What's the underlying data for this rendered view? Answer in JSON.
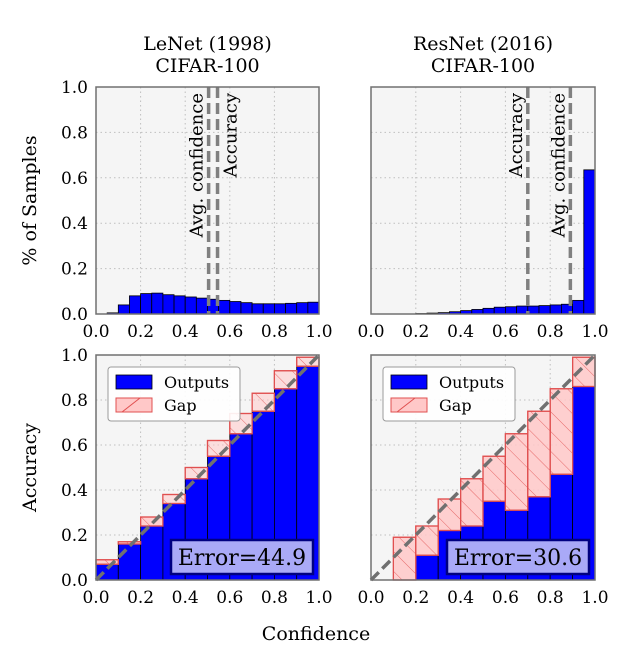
{
  "figure": {
    "xlabel": "Confidence",
    "colors": {
      "axes_bg": "#f5f5f5",
      "grid": "#bfbfbf",
      "outputs": "#0000ff",
      "gap_fill": "#ffc8c8",
      "gap_edge": "#e05050",
      "reference": "#707070",
      "vline": "#808080",
      "error_box_fill": "#a9a9f7",
      "error_box_edge": "#000080"
    }
  },
  "chart_data": [
    {
      "id": "lenet-hist",
      "type": "bar",
      "title": "LeNet (1998)",
      "subtitle": "CIFAR-100",
      "ylabel": "% of Samples",
      "xlabel": "",
      "xlim": [
        0,
        1
      ],
      "ylim": [
        0,
        1
      ],
      "xticks": [
        "0.0",
        "0.2",
        "0.4",
        "0.6",
        "0.8",
        "1.0"
      ],
      "yticks": [
        "0.0",
        "0.2",
        "0.4",
        "0.6",
        "0.8",
        "1.0"
      ],
      "show_yticks": true,
      "grid": true,
      "bin_width": 0.05,
      "bin_starts": [
        0.0,
        0.05,
        0.1,
        0.15,
        0.2,
        0.25,
        0.3,
        0.35,
        0.4,
        0.45,
        0.5,
        0.55,
        0.6,
        0.65,
        0.7,
        0.75,
        0.8,
        0.85,
        0.9,
        0.95
      ],
      "values": [
        0.0,
        0.005,
        0.04,
        0.08,
        0.09,
        0.092,
        0.085,
        0.08,
        0.075,
        0.07,
        0.065,
        0.06,
        0.055,
        0.05,
        0.045,
        0.045,
        0.045,
        0.047,
        0.05,
        0.052
      ],
      "vlines": [
        {
          "x": 0.505,
          "label": "Avg. confidence",
          "label_side": "left"
        },
        {
          "x": 0.545,
          "label": "Accuracy",
          "label_side": "right"
        }
      ]
    },
    {
      "id": "resnet-hist",
      "type": "bar",
      "title": "ResNet (2016)",
      "subtitle": "CIFAR-100",
      "ylabel": "",
      "xlabel": "",
      "xlim": [
        0,
        1
      ],
      "ylim": [
        0,
        1
      ],
      "xticks": [
        "0.0",
        "0.2",
        "0.4",
        "0.6",
        "0.8",
        "1.0"
      ],
      "yticks": [],
      "show_yticks": false,
      "grid": true,
      "bin_width": 0.05,
      "bin_starts": [
        0.0,
        0.05,
        0.1,
        0.15,
        0.2,
        0.25,
        0.3,
        0.35,
        0.4,
        0.45,
        0.5,
        0.55,
        0.6,
        0.65,
        0.7,
        0.75,
        0.8,
        0.85,
        0.9,
        0.95
      ],
      "values": [
        0.0,
        0.0,
        0.0,
        0.0,
        0.002,
        0.004,
        0.006,
        0.01,
        0.015,
        0.02,
        0.025,
        0.03,
        0.032,
        0.035,
        0.035,
        0.037,
        0.04,
        0.043,
        0.06,
        0.635
      ],
      "vlines": [
        {
          "x": 0.7,
          "label": "Accuracy",
          "label_side": "left"
        },
        {
          "x": 0.89,
          "label": "Avg. confidence",
          "label_side": "left"
        }
      ]
    },
    {
      "id": "lenet-reliability",
      "type": "bar",
      "ylabel": "Accuracy",
      "xlabel": "",
      "xlim": [
        0,
        1
      ],
      "ylim": [
        0,
        1
      ],
      "xticks": [
        "0.0",
        "0.2",
        "0.4",
        "0.6",
        "0.8",
        "1.0"
      ],
      "yticks": [
        "0.0",
        "0.2",
        "0.4",
        "0.6",
        "0.8",
        "1.0"
      ],
      "show_yticks": true,
      "grid": true,
      "bin_width": 0.1,
      "bin_starts": [
        0.0,
        0.1,
        0.2,
        0.3,
        0.4,
        0.5,
        0.6,
        0.7,
        0.8,
        0.9
      ],
      "series": [
        {
          "name": "Outputs",
          "values": [
            0.07,
            0.16,
            0.24,
            0.34,
            0.45,
            0.55,
            0.65,
            0.75,
            0.85,
            0.95
          ]
        },
        {
          "name": "Gap",
          "values": [
            0.09,
            0.17,
            0.28,
            0.38,
            0.5,
            0.62,
            0.74,
            0.83,
            0.93,
            0.99
          ]
        }
      ],
      "legend_position": "top-left",
      "annotation": "Error=44.9"
    },
    {
      "id": "resnet-reliability",
      "type": "bar",
      "ylabel": "",
      "xlabel": "",
      "xlim": [
        0,
        1
      ],
      "ylim": [
        0,
        1
      ],
      "xticks": [
        "0.0",
        "0.2",
        "0.4",
        "0.6",
        "0.8",
        "1.0"
      ],
      "yticks": [],
      "show_yticks": false,
      "grid": true,
      "bin_width": 0.1,
      "bin_starts": [
        0.0,
        0.1,
        0.2,
        0.3,
        0.4,
        0.5,
        0.6,
        0.7,
        0.8,
        0.9
      ],
      "series": [
        {
          "name": "Outputs",
          "values": [
            0.0,
            0.0,
            0.11,
            0.22,
            0.24,
            0.35,
            0.31,
            0.37,
            0.47,
            0.86
          ]
        },
        {
          "name": "Gap",
          "values": [
            0.0,
            0.19,
            0.24,
            0.36,
            0.45,
            0.55,
            0.65,
            0.75,
            0.85,
            0.99
          ]
        }
      ],
      "legend_position": "top-left",
      "annotation": "Error=30.6"
    }
  ]
}
